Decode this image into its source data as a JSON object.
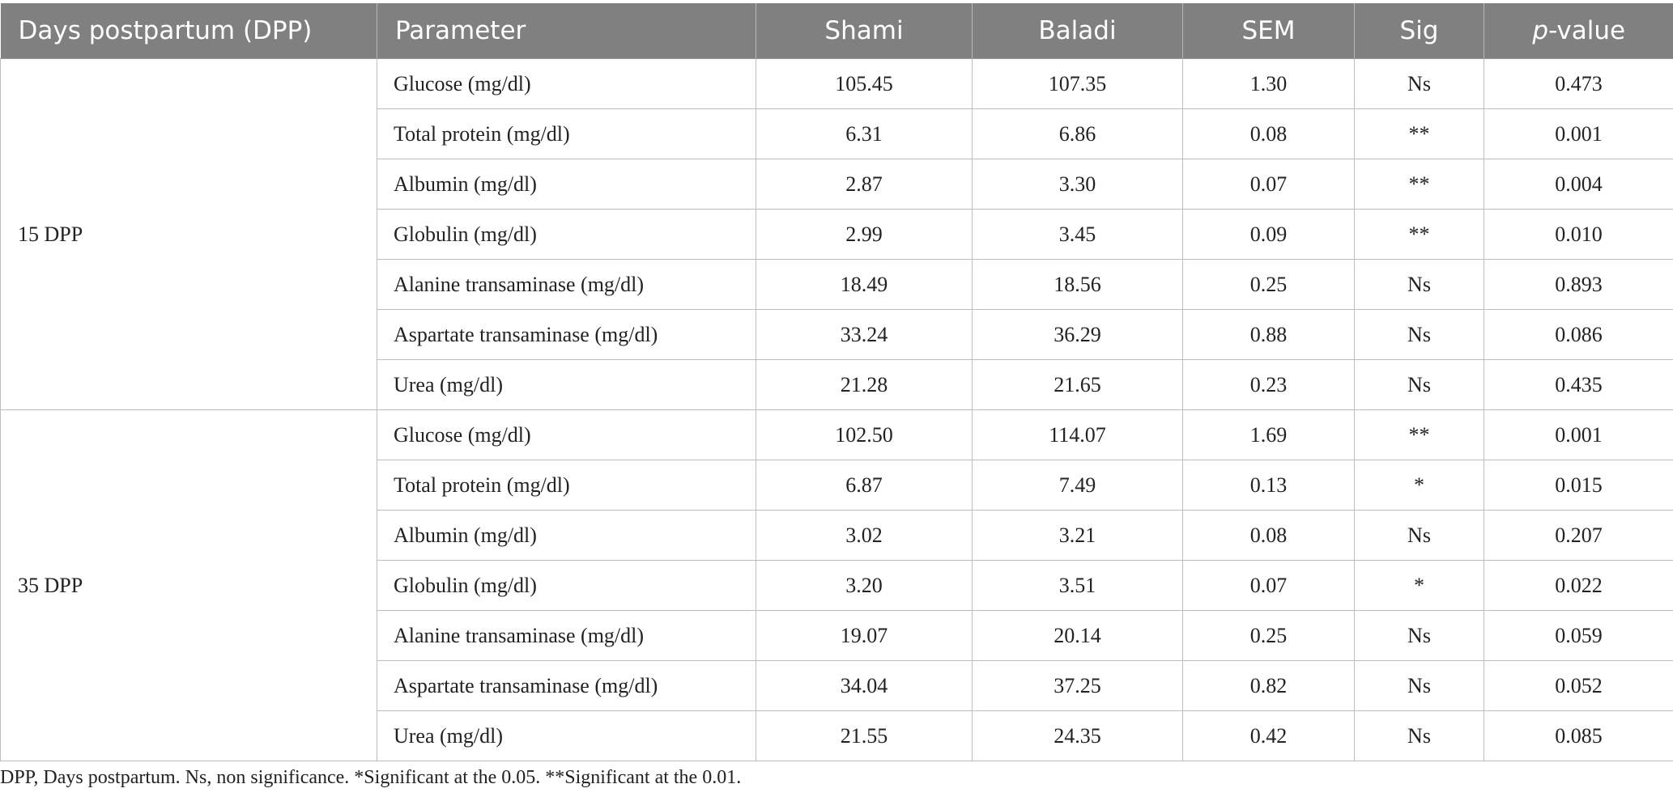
{
  "headers": [
    "Days postpartum (DPP)",
    "Parameter",
    "Shami",
    "Baladi",
    "SEM",
    "Sig",
    "p",
    "-value"
  ],
  "groups": [
    {
      "label": "15 DPP",
      "rows": [
        [
          "Glucose (mg/dl)",
          "105.45",
          "107.35",
          "1.30",
          "Ns",
          "0.473"
        ],
        [
          "Total protein (mg/dl)",
          "6.31",
          "6.86",
          "0.08",
          "**",
          "0.001"
        ],
        [
          "Albumin (mg/dl)",
          "2.87",
          "3.30",
          "0.07",
          "**",
          "0.004"
        ],
        [
          "Globulin (mg/dl)",
          "2.99",
          "3.45",
          "0.09",
          "**",
          "0.010"
        ],
        [
          "Alanine transaminase (mg/dl)",
          "18.49",
          "18.56",
          "0.25",
          "Ns",
          "0.893"
        ],
        [
          "Aspartate transaminase (mg/dl)",
          "33.24",
          "36.29",
          "0.88",
          "Ns",
          "0.086"
        ],
        [
          "Urea (mg/dl)",
          "21.28",
          "21.65",
          "0.23",
          "Ns",
          "0.435"
        ]
      ]
    },
    {
      "label": "35 DPP",
      "rows": [
        [
          "Glucose (mg/dl)",
          "102.50",
          "114.07",
          "1.69",
          "**",
          "0.001"
        ],
        [
          "Total protein (mg/dl)",
          "6.87",
          "7.49",
          "0.13",
          "*",
          "0.015"
        ],
        [
          "Albumin (mg/dl)",
          "3.02",
          "3.21",
          "0.08",
          "Ns",
          "0.207"
        ],
        [
          "Globulin (mg/dl)",
          "3.20",
          "3.51",
          "0.07",
          "*",
          "0.022"
        ],
        [
          "Alanine transaminase (mg/dl)",
          "19.07",
          "20.14",
          "0.25",
          "Ns",
          "0.059"
        ],
        [
          "Aspartate transaminase (mg/dl)",
          "34.04",
          "37.25",
          "0.82",
          "Ns",
          "0.052"
        ],
        [
          "Urea (mg/dl)",
          "21.55",
          "24.35",
          "0.42",
          "Ns",
          "0.085"
        ]
      ]
    }
  ],
  "footnote": "DPP, Days postpartum. Ns, non significance. *Significant at the 0.05. **Significant at the 0.01."
}
